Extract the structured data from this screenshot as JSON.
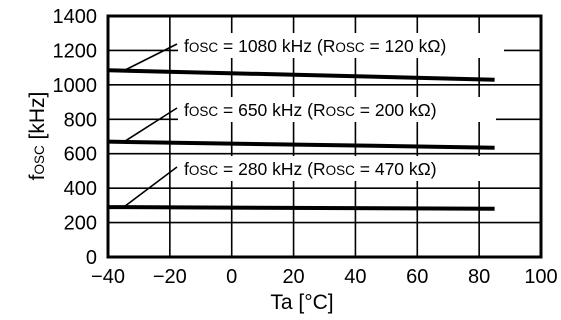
{
  "chart_data": {
    "type": "line",
    "xlabel_prefix": "Ta [",
    "xlabel_unit": "°C",
    "xlabel_suffix": "]",
    "ylabel_main": "f",
    "ylabel_sub": "OSC",
    "ylabel_unit": " [kHz]",
    "xlim": [
      -40,
      100
    ],
    "ylim": [
      0,
      1400
    ],
    "x_ticks": [
      -40,
      -20,
      0,
      20,
      40,
      60,
      80,
      100
    ],
    "x_tick_labels": [
      "−40",
      "−20",
      "0",
      "20",
      "40",
      "60",
      "80",
      "100"
    ],
    "y_ticks": [
      0,
      200,
      400,
      600,
      800,
      1000,
      1200,
      1400
    ],
    "y_tick_labels": [
      "0",
      "200",
      "400",
      "600",
      "800",
      "1000",
      "1200",
      "1400"
    ],
    "grid": true,
    "series": [
      {
        "x": [
          -40,
          85
        ],
        "y": [
          1085,
          1030
        ],
        "annotation": {
          "f": "f",
          "f_sub": "OSC",
          "mid": " = 1080 kHz (R",
          "r_sub": "OSC",
          "tail": " = 120 kΩ)"
        }
      },
      {
        "x": [
          -40,
          85
        ],
        "y": [
          670,
          635
        ],
        "annotation": {
          "f": "f",
          "f_sub": "OSC",
          "mid": " = 650 kHz (R",
          "r_sub": "OSC",
          "tail": " = 200 kΩ)"
        }
      },
      {
        "x": [
          -40,
          85
        ],
        "y": [
          290,
          280
        ],
        "annotation": {
          "f": "f",
          "f_sub": "OSC",
          "mid": " = 280 kHz (R",
          "r_sub": "OSC",
          "tail": " = 470 kΩ)"
        }
      }
    ]
  }
}
